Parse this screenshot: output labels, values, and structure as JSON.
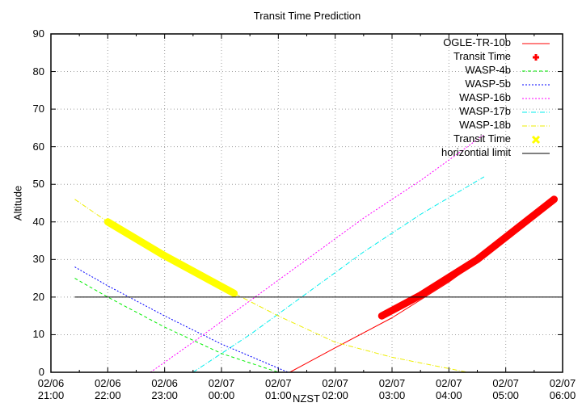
{
  "chart_data": {
    "type": "line",
    "title": "Transit Time Prediction",
    "xlabel": "NZST",
    "ylabel": "Altitude",
    "ylim": [
      0,
      90
    ],
    "xlim": [
      "02/06 21:00",
      "02/07 06:00"
    ],
    "yticks": [
      0,
      10,
      20,
      30,
      40,
      50,
      60,
      70,
      80,
      90
    ],
    "xticks": [
      {
        "date": "02/06",
        "time": "21:00"
      },
      {
        "date": "02/06",
        "time": "22:00"
      },
      {
        "date": "02/06",
        "time": "23:00"
      },
      {
        "date": "02/07",
        "time": "00:00"
      },
      {
        "date": "02/07",
        "time": "01:00"
      },
      {
        "date": "02/07",
        "time": "02:00"
      },
      {
        "date": "02/07",
        "time": "03:00"
      },
      {
        "date": "02/07",
        "time": "04:00"
      },
      {
        "date": "02/07",
        "time": "05:00"
      },
      {
        "date": "02/07",
        "time": "06:00"
      }
    ],
    "grid": true,
    "legend_position": "top-right",
    "x_unit": "hours after 02/06 21:00",
    "series": [
      {
        "name": "OGLE-TR-10b",
        "color": "#ff0000",
        "style": "solid",
        "x": [
          4.2,
          5.0,
          6.0,
          7.0,
          8.0,
          8.85
        ],
        "y": [
          0,
          6.5,
          14.5,
          24,
          35,
          46
        ]
      },
      {
        "name": "Transit Time",
        "color": "#ff0000",
        "style": "thick",
        "x": [
          5.82,
          6.5,
          7.5,
          8.85
        ],
        "y": [
          15,
          20.5,
          30,
          46
        ]
      },
      {
        "name": "WASP-4b",
        "color": "#00ee00",
        "style": "dashed",
        "x": [
          0.42,
          1.0,
          2.0,
          3.0,
          4.0
        ],
        "y": [
          25,
          20,
          12,
          5,
          0
        ]
      },
      {
        "name": "WASP-5b",
        "color": "#0000ff",
        "style": "dotted",
        "x": [
          0.42,
          1.0,
          2.0,
          3.0,
          4.17
        ],
        "y": [
          28,
          23,
          15,
          7.5,
          0
        ]
      },
      {
        "name": "WASP-16b",
        "color": "#ff00ff",
        "style": "dotted",
        "x": [
          1.75,
          2.5,
          3.5,
          4.5,
          5.5,
          6.5,
          7.6
        ],
        "y": [
          0,
          8,
          19,
          30,
          41,
          51,
          63
        ]
      },
      {
        "name": "WASP-17b",
        "color": "#00eeee",
        "style": "dashdot",
        "x": [
          2.5,
          3.5,
          4.5,
          5.5,
          6.5,
          7.62
        ],
        "y": [
          0,
          10,
          21,
          32,
          42,
          52
        ]
      },
      {
        "name": "WASP-18b",
        "color": "#eeee00",
        "style": "dashdot",
        "x": [
          0.42,
          1.0,
          2.0,
          3.22,
          4.0,
          5.0,
          6.0,
          7.33
        ],
        "y": [
          46,
          40,
          31,
          21,
          15,
          8,
          4,
          0
        ]
      },
      {
        "name": "Transit Time",
        "color": "#ffff00",
        "style": "thick",
        "x": [
          1.0,
          2.0,
          3.22
        ],
        "y": [
          40,
          31,
          21
        ]
      },
      {
        "name": "horizontial limit",
        "color": "#000000",
        "style": "solid",
        "x": [
          0.42,
          8.92
        ],
        "y": [
          20,
          20
        ]
      }
    ]
  },
  "legend": {
    "items": [
      {
        "label": "OGLE-TR-10b"
      },
      {
        "label": "Transit Time"
      },
      {
        "label": "WASP-4b"
      },
      {
        "label": "WASP-5b"
      },
      {
        "label": "WASP-16b"
      },
      {
        "label": "WASP-17b"
      },
      {
        "label": "WASP-18b"
      },
      {
        "label": "Transit Time"
      },
      {
        "label": "horizontial limit"
      }
    ]
  }
}
